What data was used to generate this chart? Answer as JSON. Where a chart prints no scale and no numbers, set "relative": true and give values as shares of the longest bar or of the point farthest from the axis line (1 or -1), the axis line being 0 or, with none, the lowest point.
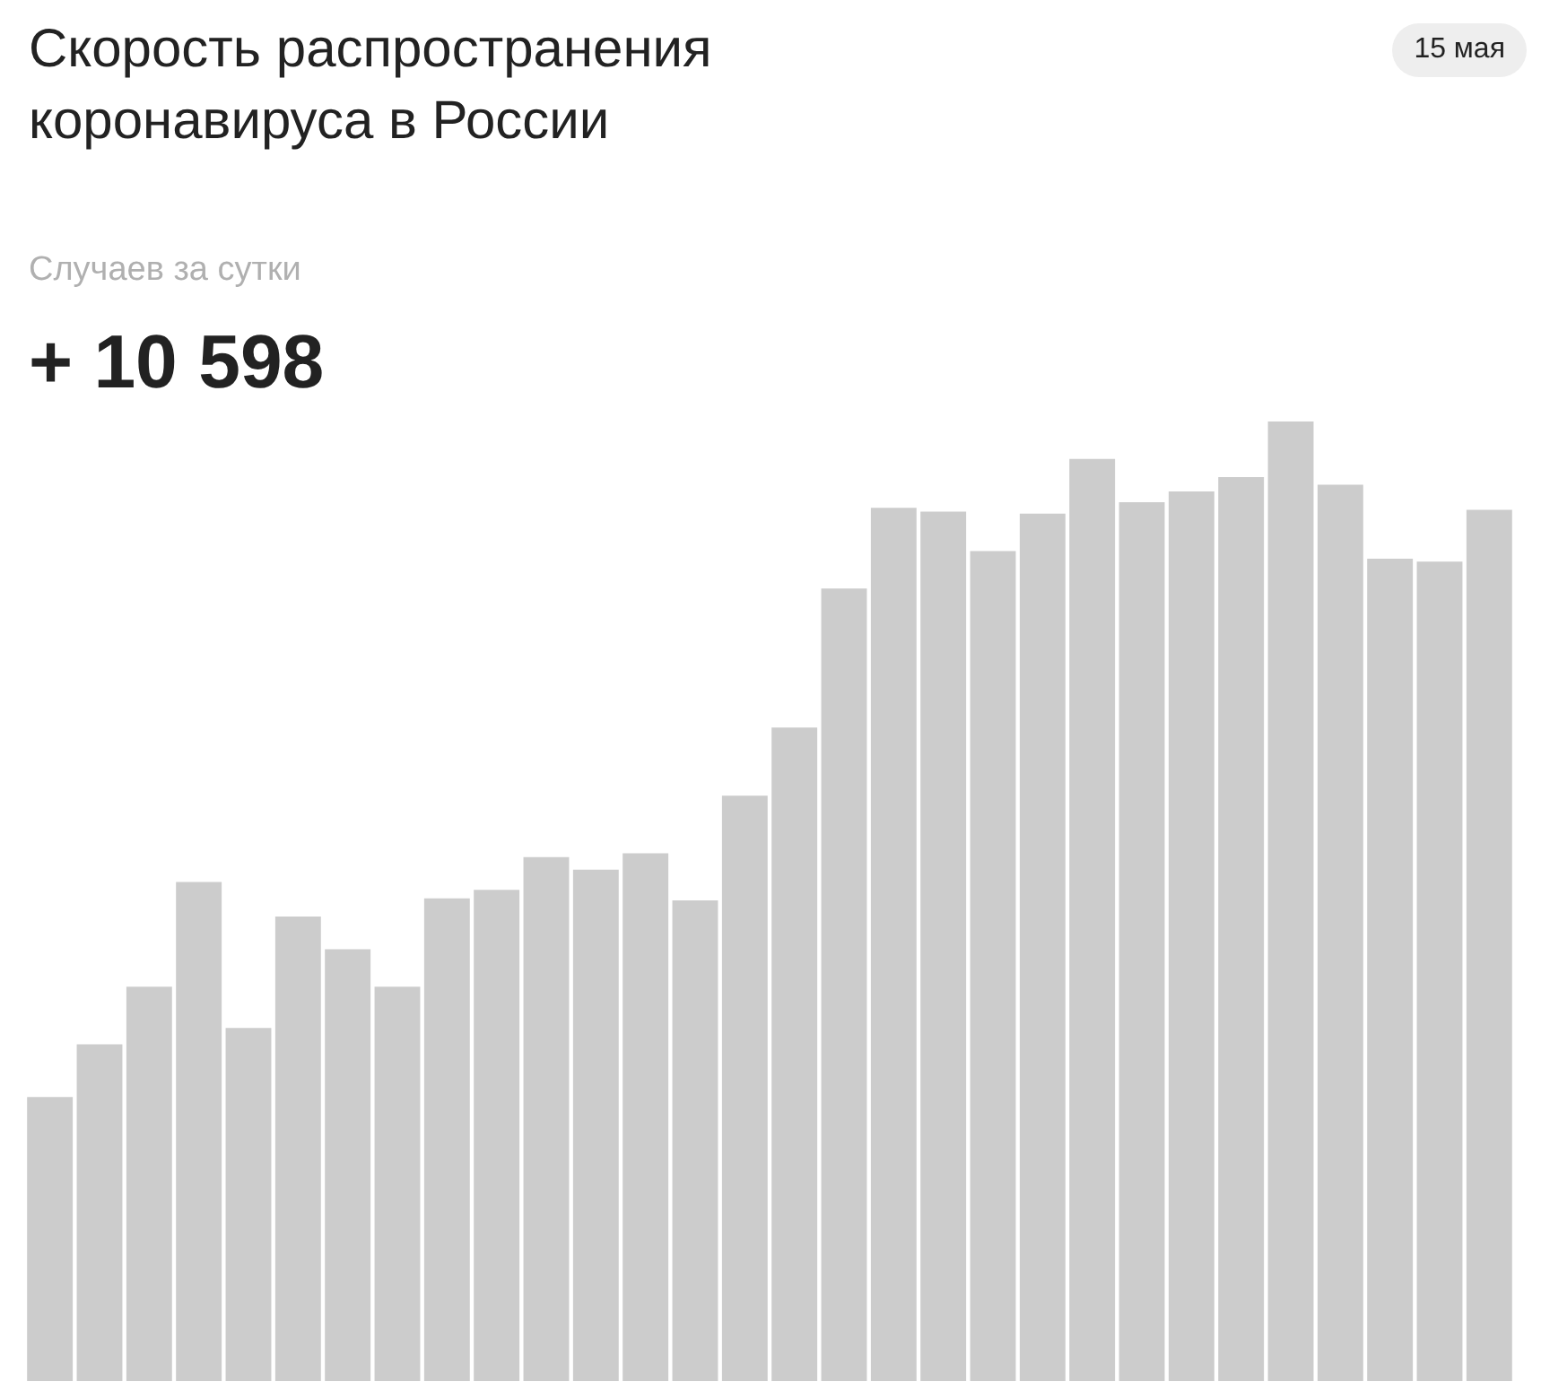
{
  "chart_data": {
    "type": "bar",
    "title": "Скорость распространения коронавируса в России",
    "subtitle": "Случаев за сутки",
    "annotations": [
      "15 мая",
      "+ 10 598"
    ],
    "relative": true,
    "color": "#cccccc",
    "categories": [
      null,
      null,
      null,
      null,
      null,
      null,
      null,
      null,
      null,
      null,
      null,
      null,
      null,
      null,
      null,
      null,
      null,
      null,
      null,
      null,
      null,
      null,
      null,
      null,
      null,
      null,
      null,
      null,
      null,
      null
    ],
    "values": [
      0.296,
      0.351,
      0.411,
      0.52,
      0.368,
      0.484,
      0.45,
      0.411,
      0.503,
      0.512,
      0.546,
      0.533,
      0.55,
      0.501,
      0.61,
      0.681,
      0.826,
      0.91,
      0.906,
      0.865,
      0.904,
      0.961,
      0.916,
      0.927,
      0.942,
      1,
      0.934,
      0.857,
      0.854,
      0.908
    ]
  }
}
